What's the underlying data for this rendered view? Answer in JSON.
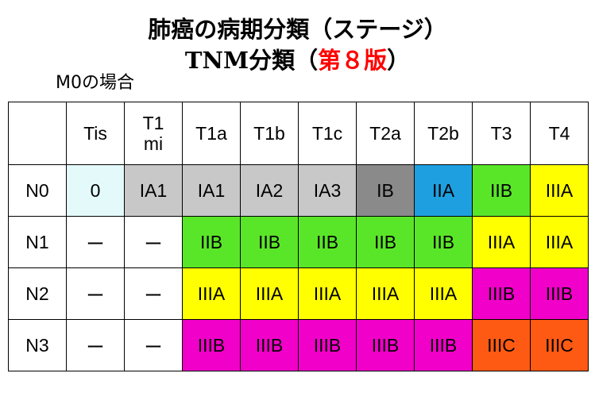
{
  "title": {
    "line1": "肺癌の病期分類（ステージ）",
    "line2_prefix": "TNM分類（",
    "line2_edition": "第８版",
    "line2_suffix": "）"
  },
  "subtitle": "M0の場合",
  "columns": [
    "",
    "Tis",
    "T1\nmi",
    "T1a",
    "T1b",
    "T1c",
    "T2a",
    "T2b",
    "T3",
    "T4"
  ],
  "rows": [
    {
      "n": "N0",
      "cells": [
        {
          "text": "0",
          "color": "#e4fafa"
        },
        {
          "text": "IA1",
          "color": "#c8c8c8"
        },
        {
          "text": "IA1",
          "color": "#c8c8c8"
        },
        {
          "text": "IA2",
          "color": "#c8c8c8"
        },
        {
          "text": "IA3",
          "color": "#c8c8c8"
        },
        {
          "text": "IB",
          "color": "#8a8a8a"
        },
        {
          "text": "IIA",
          "color": "#1ea0e0"
        },
        {
          "text": "IIB",
          "color": "#5ae628"
        },
        {
          "text": "IIIA",
          "color": "#ffff00"
        }
      ]
    },
    {
      "n": "N1",
      "cells": [
        {
          "text": "ー",
          "color": "#ffffff"
        },
        {
          "text": "ー",
          "color": "#ffffff"
        },
        {
          "text": "IIB",
          "color": "#5ae628"
        },
        {
          "text": "IIB",
          "color": "#5ae628"
        },
        {
          "text": "IIB",
          "color": "#5ae628"
        },
        {
          "text": "IIB",
          "color": "#5ae628"
        },
        {
          "text": "IIB",
          "color": "#5ae628"
        },
        {
          "text": "IIIA",
          "color": "#ffff00"
        },
        {
          "text": "IIIA",
          "color": "#ffff00"
        }
      ]
    },
    {
      "n": "N2",
      "cells": [
        {
          "text": "ー",
          "color": "#ffffff"
        },
        {
          "text": "ー",
          "color": "#ffffff"
        },
        {
          "text": "IIIA",
          "color": "#ffff00"
        },
        {
          "text": "IIIA",
          "color": "#ffff00"
        },
        {
          "text": "IIIA",
          "color": "#ffff00"
        },
        {
          "text": "IIIA",
          "color": "#ffff00"
        },
        {
          "text": "IIIA",
          "color": "#ffff00"
        },
        {
          "text": "IIIB",
          "color": "#f000c8"
        },
        {
          "text": "IIIB",
          "color": "#f000c8"
        }
      ]
    },
    {
      "n": "N3",
      "cells": [
        {
          "text": "ー",
          "color": "#ffffff"
        },
        {
          "text": "ー",
          "color": "#ffffff"
        },
        {
          "text": "IIIB",
          "color": "#f000c8"
        },
        {
          "text": "IIIB",
          "color": "#f000c8"
        },
        {
          "text": "IIIB",
          "color": "#f000c8"
        },
        {
          "text": "IIIB",
          "color": "#f000c8"
        },
        {
          "text": "IIIB",
          "color": "#f000c8"
        },
        {
          "text": "IIIC",
          "color": "#ff5a14"
        },
        {
          "text": "IIIC",
          "color": "#ff5a14"
        }
      ]
    }
  ]
}
